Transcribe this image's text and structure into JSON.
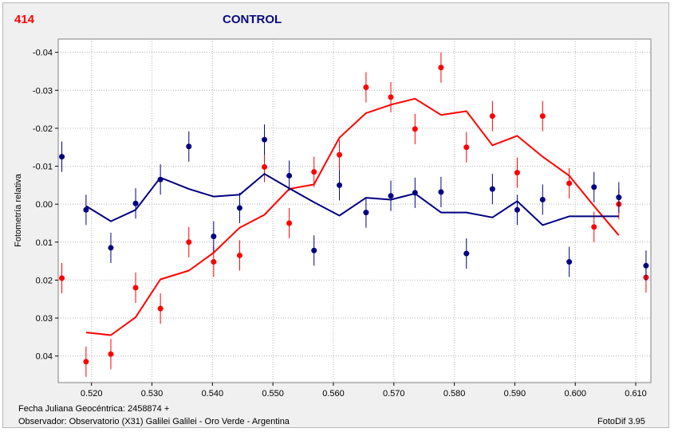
{
  "header": {
    "object_id": "414",
    "title": "CONTROL"
  },
  "footer": {
    "jd_label": "Fecha Juliana Geocéntrica: 2458874 +",
    "observer": "Observador: Observatorio (X31) Galilei Galilei - Oro Verde - Argentina",
    "software": "FotoDif 3.95"
  },
  "colors": {
    "series_red": "#ff0000",
    "series_blue": "#000080",
    "plot_bg": "#ffffff",
    "frame_bg": "#f0f0f0"
  },
  "chart_data": {
    "type": "scatter",
    "title": "",
    "xlabel": "",
    "ylabel": "Fotometría relativa",
    "xlim": [
      0.5145,
      0.6125
    ],
    "ylim": [
      0.047,
      -0.0435
    ],
    "y_inverted": true,
    "grid": true,
    "legend": "none",
    "x_ticks": [
      0.52,
      0.53,
      0.54,
      0.55,
      0.56,
      0.57,
      0.58,
      0.59,
      0.6,
      0.61
    ],
    "x_tick_labels": [
      "0.520",
      "0.530",
      "0.540",
      "0.550",
      "0.560",
      "0.570",
      "0.580",
      "0.590",
      "0.600",
      "0.610"
    ],
    "y_ticks": [
      -0.04,
      -0.03,
      -0.02,
      -0.01,
      0.0,
      0.01,
      0.02,
      0.03,
      0.04
    ],
    "y_tick_labels": [
      "-0.04",
      "-0.03",
      "-0.02",
      "-0.01",
      "0.00",
      "0.01",
      "0.02",
      "0.03",
      "0.04"
    ],
    "series": [
      {
        "color": "#ff0000",
        "points": [
          {
            "x": 0.5151,
            "y": 0.0195,
            "err": 0.004
          },
          {
            "x": 0.5191,
            "y": 0.0415,
            "err": 0.004
          },
          {
            "x": 0.5232,
            "y": 0.0395,
            "err": 0.004
          },
          {
            "x": 0.5273,
            "y": 0.022,
            "err": 0.004
          },
          {
            "x": 0.5314,
            "y": 0.0275,
            "err": 0.004
          },
          {
            "x": 0.5361,
            "y": 0.01,
            "err": 0.004
          },
          {
            "x": 0.5402,
            "y": 0.0152,
            "err": 0.004
          },
          {
            "x": 0.5445,
            "y": 0.0135,
            "err": 0.004
          },
          {
            "x": 0.5486,
            "y": -0.0098,
            "err": 0.004
          },
          {
            "x": 0.5527,
            "y": 0.005,
            "err": 0.004
          },
          {
            "x": 0.5568,
            "y": -0.0085,
            "err": 0.004
          },
          {
            "x": 0.561,
            "y": -0.013,
            "err": 0.004
          },
          {
            "x": 0.5654,
            "y": -0.0308,
            "err": 0.004
          },
          {
            "x": 0.5695,
            "y": -0.0282,
            "err": 0.004
          },
          {
            "x": 0.5735,
            "y": -0.0198,
            "err": 0.004
          },
          {
            "x": 0.5778,
            "y": -0.036,
            "err": 0.004
          },
          {
            "x": 0.582,
            "y": -0.015,
            "err": 0.004
          },
          {
            "x": 0.5863,
            "y": -0.0232,
            "err": 0.004
          },
          {
            "x": 0.5904,
            "y": -0.0083,
            "err": 0.004
          },
          {
            "x": 0.5946,
            "y": -0.0232,
            "err": 0.004
          },
          {
            "x": 0.599,
            "y": -0.0055,
            "err": 0.004
          },
          {
            "x": 0.6031,
            "y": 0.006,
            "err": 0.004
          },
          {
            "x": 0.6072,
            "y": 0.0,
            "err": 0.004
          },
          {
            "x": 0.6117,
            "y": 0.0193,
            "err": 0.004
          }
        ],
        "line": [
          {
            "x": 0.5191,
            "y": 0.0338
          },
          {
            "x": 0.5232,
            "y": 0.0345
          },
          {
            "x": 0.5273,
            "y": 0.0298
          },
          {
            "x": 0.5314,
            "y": 0.0198
          },
          {
            "x": 0.5361,
            "y": 0.0175
          },
          {
            "x": 0.5402,
            "y": 0.0128
          },
          {
            "x": 0.5445,
            "y": 0.0062
          },
          {
            "x": 0.5486,
            "y": 0.0028
          },
          {
            "x": 0.5527,
            "y": -0.004
          },
          {
            "x": 0.5568,
            "y": -0.0052
          },
          {
            "x": 0.561,
            "y": -0.0175
          },
          {
            "x": 0.5654,
            "y": -0.024
          },
          {
            "x": 0.5695,
            "y": -0.0262
          },
          {
            "x": 0.5735,
            "y": -0.0278
          },
          {
            "x": 0.5778,
            "y": -0.0235
          },
          {
            "x": 0.582,
            "y": -0.0245
          },
          {
            "x": 0.5863,
            "y": -0.0155
          },
          {
            "x": 0.5904,
            "y": -0.018
          },
          {
            "x": 0.5946,
            "y": -0.0125
          },
          {
            "x": 0.599,
            "y": -0.0075
          },
          {
            "x": 0.6031,
            "y": 0.0005
          },
          {
            "x": 0.6072,
            "y": 0.0082
          }
        ]
      },
      {
        "color": "#000080",
        "points": [
          {
            "x": 0.5151,
            "y": -0.0125,
            "err": 0.004
          },
          {
            "x": 0.5191,
            "y": 0.0015,
            "err": 0.004
          },
          {
            "x": 0.5232,
            "y": 0.0115,
            "err": 0.004
          },
          {
            "x": 0.5273,
            "y": -0.0002,
            "err": 0.004
          },
          {
            "x": 0.5314,
            "y": -0.0065,
            "err": 0.004
          },
          {
            "x": 0.5361,
            "y": -0.0152,
            "err": 0.004
          },
          {
            "x": 0.5402,
            "y": 0.0085,
            "err": 0.004
          },
          {
            "x": 0.5445,
            "y": 0.001,
            "err": 0.004
          },
          {
            "x": 0.5486,
            "y": -0.017,
            "err": 0.004
          },
          {
            "x": 0.5527,
            "y": -0.0075,
            "err": 0.004
          },
          {
            "x": 0.5568,
            "y": 0.0122,
            "err": 0.004
          },
          {
            "x": 0.561,
            "y": -0.005,
            "err": 0.004
          },
          {
            "x": 0.5654,
            "y": 0.0022,
            "err": 0.004
          },
          {
            "x": 0.5695,
            "y": -0.0022,
            "err": 0.004
          },
          {
            "x": 0.5735,
            "y": -0.003,
            "err": 0.004
          },
          {
            "x": 0.5778,
            "y": -0.0032,
            "err": 0.004
          },
          {
            "x": 0.582,
            "y": 0.013,
            "err": 0.004
          },
          {
            "x": 0.5863,
            "y": -0.004,
            "err": 0.004
          },
          {
            "x": 0.5904,
            "y": 0.0015,
            "err": 0.004
          },
          {
            "x": 0.5946,
            "y": -0.0012,
            "err": 0.004
          },
          {
            "x": 0.599,
            "y": 0.0152,
            "err": 0.004
          },
          {
            "x": 0.6031,
            "y": -0.0045,
            "err": 0.004
          },
          {
            "x": 0.6072,
            "y": -0.0018,
            "err": 0.004
          },
          {
            "x": 0.6117,
            "y": 0.0162,
            "err": 0.004
          }
        ],
        "line": [
          {
            "x": 0.5191,
            "y": 0.0005
          },
          {
            "x": 0.5232,
            "y": 0.0045
          },
          {
            "x": 0.5273,
            "y": 0.0015
          },
          {
            "x": 0.5314,
            "y": -0.007
          },
          {
            "x": 0.5361,
            "y": -0.004
          },
          {
            "x": 0.5402,
            "y": -0.002
          },
          {
            "x": 0.5445,
            "y": -0.0025
          },
          {
            "x": 0.5486,
            "y": -0.008
          },
          {
            "x": 0.5527,
            "y": -0.0042
          },
          {
            "x": 0.5568,
            "y": -0.0005
          },
          {
            "x": 0.561,
            "y": 0.003
          },
          {
            "x": 0.5654,
            "y": -0.0017
          },
          {
            "x": 0.5695,
            "y": -0.0012
          },
          {
            "x": 0.5735,
            "y": -0.0028
          },
          {
            "x": 0.5778,
            "y": 0.0022
          },
          {
            "x": 0.582,
            "y": 0.0022
          },
          {
            "x": 0.5863,
            "y": 0.0035
          },
          {
            "x": 0.5904,
            "y": -0.0008
          },
          {
            "x": 0.5946,
            "y": 0.0055
          },
          {
            "x": 0.599,
            "y": 0.0032
          },
          {
            "x": 0.6031,
            "y": 0.0032
          },
          {
            "x": 0.6072,
            "y": 0.0032
          }
        ]
      }
    ]
  }
}
